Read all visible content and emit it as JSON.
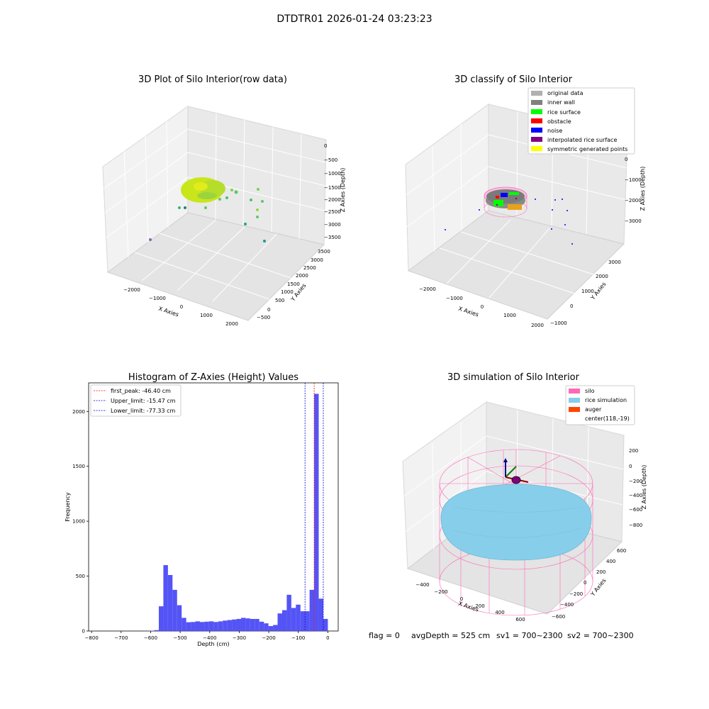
{
  "suptitle": "DTDTR01 2026-01-24 03:23:23",
  "panels": {
    "raw": {
      "title": "3D Plot of Silo Interior(row data)",
      "xlabel": "X Axies",
      "ylabel": "Y Axies",
      "zlabel": "Z Axies (Depth)",
      "xticks": [
        "−2000",
        "−1000",
        "0",
        "1000",
        "2000"
      ],
      "yticks": [
        "−500",
        "0",
        "500",
        "1000",
        "1500",
        "2000",
        "2500",
        "3000",
        "3500"
      ],
      "zticks": [
        "0",
        "−500",
        "−1000",
        "−1500",
        "−2000",
        "−2500",
        "−3000",
        "−3500"
      ]
    },
    "classify": {
      "title": "3D classify of Silo Interior",
      "xlabel": "X Axies",
      "ylabel": "Y Axies",
      "zlabel": "Z Axies (Depth)",
      "xticks": [
        "−2000",
        "−1000",
        "0",
        "1000",
        "2000"
      ],
      "yticks": [
        "−1000",
        "0",
        "1000",
        "2000",
        "3000"
      ],
      "zticks": [
        "0",
        "−1000",
        "−2000",
        "−3000"
      ],
      "legend": [
        {
          "label": "original data",
          "color": "#b0b0b0"
        },
        {
          "label": "inner wall",
          "color": "#808080"
        },
        {
          "label": "rice surface",
          "color": "#00ff00"
        },
        {
          "label": "obstacle",
          "color": "#ff0000"
        },
        {
          "label": "noise",
          "color": "#0000ff"
        },
        {
          "label": "interpolated rice surface",
          "color": "#800080"
        },
        {
          "label": "symmetric generated points",
          "color": "#ffff00"
        }
      ]
    },
    "simulation": {
      "title": "3D simulation of Silo Interior",
      "xlabel": "X Axies",
      "ylabel": "Y Axies",
      "zlabel": "Z Axies (Depth)",
      "xticks": [
        "−400",
        "−200",
        "0",
        "200",
        "400",
        "600"
      ],
      "yticks": [
        "−600",
        "−400",
        "−200",
        "0",
        "200",
        "400",
        "600"
      ],
      "zticks": [
        "200",
        "0",
        "−200",
        "−400",
        "−600",
        "−800"
      ],
      "legend": [
        {
          "label": "silo",
          "color": "#ff69b4"
        },
        {
          "label": "rice simulation",
          "color": "#87ceeb"
        },
        {
          "label": "auger",
          "color": "#ff4500"
        },
        {
          "label": "center(118,-19)",
          "color": ""
        }
      ]
    }
  },
  "status_line": {
    "flag": "flag = 0",
    "avg_depth": "avgDepth = 525 cm",
    "sv1": "sv1 = 700~2300",
    "sv2": "sv2 = 700~2300"
  },
  "colors": {
    "histogram_bar": "#4b4bf5",
    "first_peak_line": "#ff0000",
    "limit_line": "#0000cd",
    "silo_wire": "#ff69b4",
    "rice": "#87ceeb",
    "auger": "#ff4500"
  },
  "chart_data": {
    "type": "bar",
    "title": "Histogram of Z-Axies (Height) Values",
    "xlabel": "Depth (cm)",
    "ylabel": "Frequency",
    "xlim": [
      -810,
      35
    ],
    "ylim": [
      0,
      2260
    ],
    "xticks": [
      -800,
      -700,
      -600,
      -500,
      -400,
      -300,
      -200,
      -100,
      0
    ],
    "xtick_labels": [
      "−800",
      "−700",
      "−600",
      "−500",
      "−400",
      "−300",
      "−200",
      "−100",
      "0"
    ],
    "yticks": [
      0,
      500,
      1000,
      1500,
      2000
    ],
    "bin_width": 15.47,
    "bin_starts": [
      -804.44,
      -788.97,
      -773.5,
      -758.03,
      -742.56,
      -727.09,
      -711.62,
      -696.15,
      -680.68,
      -665.21,
      -649.74,
      -634.27,
      -618.8,
      -603.33,
      -587.86,
      -572.39,
      -556.92,
      -541.45,
      -525.98,
      -510.51,
      -495.04,
      -479.57,
      -464.1,
      -448.63,
      -433.16,
      -417.69,
      -402.22,
      -386.75,
      -371.28,
      -355.81,
      -340.34,
      -324.87,
      -309.4,
      -293.93,
      -278.46,
      -262.99,
      -247.52,
      -232.05,
      -216.58,
      -201.11,
      -185.64,
      -170.17,
      -154.7,
      -139.23,
      -123.76,
      -108.29,
      -92.82,
      -77.35,
      -61.88,
      -46.41,
      -30.94,
      -15.47
    ],
    "values": [
      1,
      0,
      0,
      0,
      0,
      0,
      0,
      0,
      0,
      0,
      0,
      0,
      0,
      3,
      8,
      225,
      600,
      510,
      375,
      235,
      120,
      80,
      82,
      88,
      82,
      85,
      88,
      82,
      88,
      95,
      100,
      105,
      110,
      120,
      115,
      110,
      110,
      85,
      70,
      45,
      55,
      160,
      190,
      330,
      210,
      240,
      180,
      180,
      375,
      2160,
      295,
      110
    ],
    "reference_lines": [
      {
        "name": "first_peak: -46.40 cm",
        "x": -46.4,
        "style": "red-dashed"
      },
      {
        "name": "Upper_limit: -15.47 cm",
        "x": -15.47,
        "style": "blue-dashed"
      },
      {
        "name": "Lower_limit: -77.33 cm",
        "x": -77.33,
        "style": "blue-dashed"
      }
    ],
    "legend_loc": "upper left",
    "grid": false
  }
}
